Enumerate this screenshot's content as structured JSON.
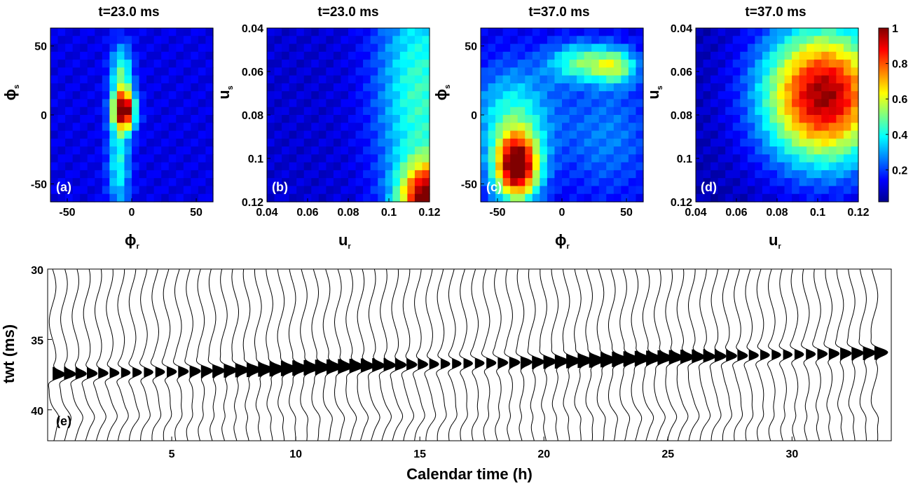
{
  "chart_data": [
    {
      "type": "heatmap",
      "panel": "(a)",
      "title": "t=23.0 ms",
      "xlabel_symbol": "ϕ",
      "xlabel_sub": "r",
      "ylabel_symbol": "ϕ",
      "ylabel_sub": "s",
      "xlim": [
        -63,
        63
      ],
      "ylim": [
        63,
        -63
      ],
      "xticks": [
        -50,
        0,
        50
      ],
      "yticks": [
        -50,
        0,
        50
      ],
      "xtick_labels": [
        "-50",
        "0",
        "50"
      ],
      "ytick_labels": [
        "-50",
        "0",
        "50"
      ],
      "grid": false,
      "blobs": [
        {
          "x": -6,
          "y": 3,
          "sx": 6,
          "sy": 10,
          "amp": 0.9
        },
        {
          "x": -10,
          "y": -35,
          "sx": 6,
          "sy": 25,
          "amp": 0.3
        },
        {
          "x": -8,
          "y": 30,
          "sx": 6,
          "sy": 15,
          "amp": 0.35
        }
      ],
      "base": 0.1
    },
    {
      "type": "heatmap",
      "panel": "(b)",
      "title": "t=23.0 ms",
      "xlabel_symbol": "u",
      "xlabel_sub": "r",
      "ylabel_symbol": "u",
      "ylabel_sub": "s",
      "xlim": [
        0.04,
        0.12
      ],
      "ylim": [
        0.04,
        0.12
      ],
      "xticks": [
        0.04,
        0.06,
        0.08,
        0.1,
        0.12
      ],
      "yticks": [
        0.04,
        0.06,
        0.08,
        0.1,
        0.12
      ],
      "xtick_labels": [
        "0.04",
        "0.06",
        "0.08",
        "0.1",
        "0.12"
      ],
      "ytick_labels": [
        "0.04",
        "0.06",
        "0.08",
        "0.1",
        "0.12"
      ],
      "grid": false,
      "blobs": [
        {
          "x": 0.12,
          "y": 0.12,
          "sx": 0.01,
          "sy": 0.012,
          "amp": 0.9
        },
        {
          "x": 0.115,
          "y": 0.07,
          "sx": 0.015,
          "sy": 0.04,
          "amp": 0.35
        }
      ],
      "base": 0.08
    },
    {
      "type": "heatmap",
      "panel": "(c)",
      "title": "t=37.0 ms",
      "xlabel_symbol": "ϕ",
      "xlabel_sub": "r",
      "ylabel_symbol": "ϕ",
      "ylabel_sub": "s",
      "xlim": [
        -63,
        63
      ],
      "ylim": [
        63,
        -63
      ],
      "xticks": [
        -50,
        0,
        50
      ],
      "yticks": [
        -50,
        0,
        50
      ],
      "xtick_labels": [
        "-50",
        "0",
        "50"
      ],
      "ytick_labels": [
        "-50",
        "0",
        "50"
      ],
      "grid": false,
      "blobs": [
        {
          "x": -35,
          "y": -38,
          "sx": 12,
          "sy": 17,
          "amp": 0.95
        },
        {
          "x": -38,
          "y": 0,
          "sx": 22,
          "sy": 25,
          "amp": 0.3
        },
        {
          "x": 15,
          "y": 38,
          "sx": 18,
          "sy": 10,
          "amp": 0.35
        },
        {
          "x": 42,
          "y": 35,
          "sx": 12,
          "sy": 9,
          "amp": 0.35
        },
        {
          "x": 35,
          "y": -15,
          "sx": 25,
          "sy": 30,
          "amp": 0.15
        }
      ],
      "base": 0.1
    },
    {
      "type": "heatmap",
      "panel": "(d)",
      "title": "t=37.0 ms",
      "xlabel_symbol": "u",
      "xlabel_sub": "r",
      "ylabel_symbol": "u",
      "ylabel_sub": "s",
      "xlim": [
        0.04,
        0.12
      ],
      "ylim": [
        0.04,
        0.12
      ],
      "xticks": [
        0.04,
        0.06,
        0.08,
        0.1,
        0.12
      ],
      "yticks": [
        0.04,
        0.06,
        0.08,
        0.1,
        0.12
      ],
      "xtick_labels": [
        "0.04",
        "0.06",
        "0.08",
        "0.1",
        "0.12"
      ],
      "ytick_labels": [
        "0.04",
        "0.06",
        "0.08",
        "0.1",
        "0.12"
      ],
      "grid": false,
      "blobs": [
        {
          "x": 0.103,
          "y": 0.071,
          "sx": 0.021,
          "sy": 0.022,
          "amp": 0.93
        }
      ],
      "base": 0.05
    },
    {
      "type": "colorbar",
      "colormap": "jet",
      "range": [
        0.02,
        1
      ],
      "ticks": [
        0.2,
        0.4,
        0.6,
        0.8,
        1
      ],
      "tick_labels": [
        "0.2",
        "0.4",
        "0.6",
        "0.8",
        "1"
      ]
    },
    {
      "type": "line",
      "subtype": "wiggle",
      "panel": "(e)",
      "xlabel": "Calendar time (h)",
      "ylabel": "twt (ms)",
      "xlim": [
        0,
        34
      ],
      "ylim": [
        42.2,
        30
      ],
      "xticks": [
        5,
        10,
        15,
        20,
        25,
        30
      ],
      "yticks": [
        30,
        35,
        40
      ],
      "xtick_labels": [
        "5",
        "10",
        "15",
        "20",
        "25",
        "30"
      ],
      "ytick_labels": [
        "30",
        "35",
        "40"
      ],
      "grid": false,
      "trace_count": 73,
      "trace_start_h": 0.2,
      "trace_step_h": 0.46,
      "event_twt_start_ms": 37.5,
      "event_twt_end_ms": 35.9,
      "event_amp_h": 0.5
    }
  ]
}
